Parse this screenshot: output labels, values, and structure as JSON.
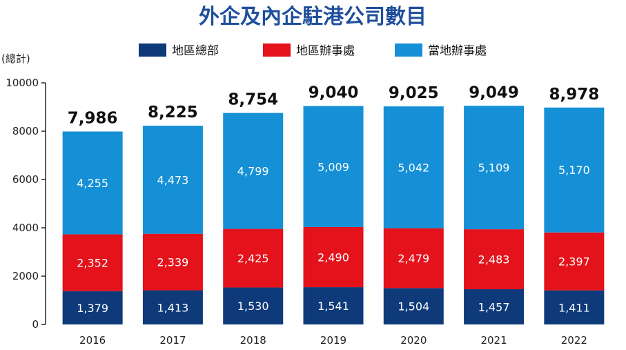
{
  "colors": {
    "title": "#1f4f9c",
    "regional_hq": "#0e3a7a",
    "regional_office": "#e3121b",
    "local_office": "#1590d6"
  },
  "chart_data": {
    "type": "bar",
    "stacked": true,
    "title": "外企及內企駐港公司數目",
    "ylabel": "(總計)",
    "xlabel": "",
    "ylim": [
      0,
      10000
    ],
    "yticks": [
      0,
      2000,
      4000,
      6000,
      8000,
      10000
    ],
    "ytick_labels": [
      "0",
      "2000",
      "4000",
      "6000",
      "8000",
      "10000"
    ],
    "grid": false,
    "legend_position": "top",
    "categories": [
      "2016",
      "2017",
      "2018",
      "2019",
      "2020",
      "2021",
      "2022"
    ],
    "series": [
      {
        "name": "地區總部",
        "color": "#0e3a7a",
        "values": [
          1379,
          1413,
          1530,
          1541,
          1504,
          1457,
          1411
        ],
        "labels": [
          "1,379",
          "1,413",
          "1,530",
          "1,541",
          "1,504",
          "1,457",
          "1,411"
        ]
      },
      {
        "name": "地區辦事處",
        "color": "#e3121b",
        "values": [
          2352,
          2339,
          2425,
          2490,
          2479,
          2483,
          2397
        ],
        "labels": [
          "2,352",
          "2,339",
          "2,425",
          "2,490",
          "2,479",
          "2,483",
          "2,397"
        ]
      },
      {
        "name": "當地辦事處",
        "color": "#1590d6",
        "values": [
          4255,
          4473,
          4799,
          5009,
          5042,
          5109,
          5170
        ],
        "labels": [
          "4,255",
          "4,473",
          "4,799",
          "5,009",
          "5,042",
          "5,109",
          "5,170"
        ]
      }
    ],
    "totals": [
      7986,
      8225,
      8754,
      9040,
      9025,
      9049,
      8978
    ],
    "total_labels": [
      "7,986",
      "8,225",
      "8,754",
      "9,040",
      "9,025",
      "9,049",
      "8,978"
    ]
  }
}
